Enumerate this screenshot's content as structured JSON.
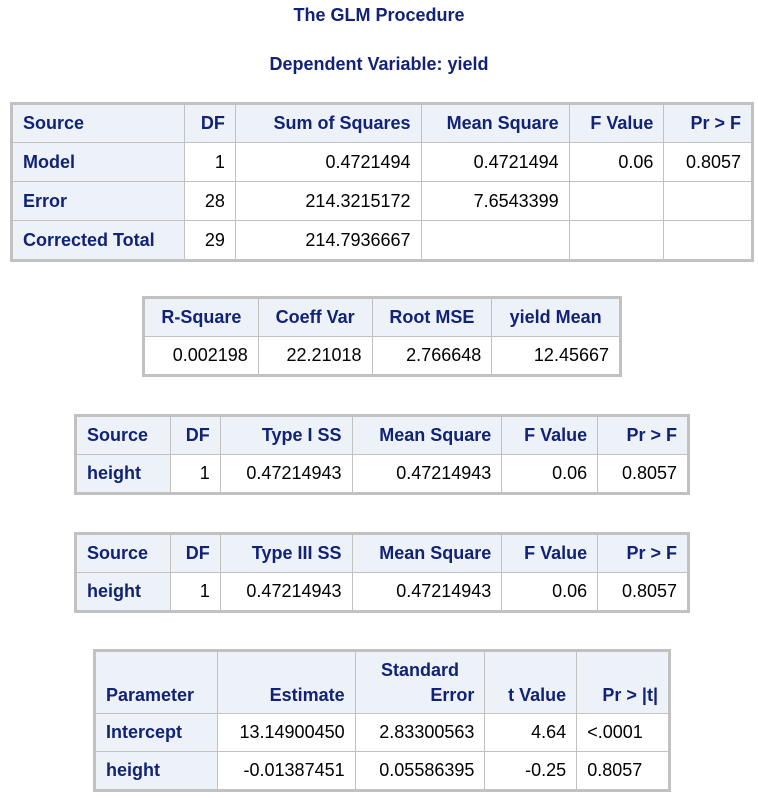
{
  "header": {
    "procedure_title": "The GLM Procedure",
    "dependent_variable": "Dependent Variable: yield"
  },
  "anova": {
    "columns": [
      "Source",
      "DF",
      "Sum of Squares",
      "Mean Square",
      "F Value",
      "Pr > F"
    ],
    "rows": [
      {
        "source": "Model",
        "df": "1",
        "ss": "0.4721494",
        "ms": "0.4721494",
        "f": "0.06",
        "p": "0.8057"
      },
      {
        "source": "Error",
        "df": "28",
        "ss": "214.3215172",
        "ms": "7.6543399",
        "f": "",
        "p": ""
      },
      {
        "source": "Corrected Total",
        "df": "29",
        "ss": "214.7936667",
        "ms": "",
        "f": "",
        "p": ""
      }
    ]
  },
  "fit": {
    "columns": [
      "R-Square",
      "Coeff Var",
      "Root MSE",
      "yield Mean"
    ],
    "values": [
      "0.002198",
      "22.21018",
      "2.766648",
      "12.45667"
    ]
  },
  "type1": {
    "columns": [
      "Source",
      "DF",
      "Type I SS",
      "Mean Square",
      "F Value",
      "Pr > F"
    ],
    "row": {
      "source": "height",
      "df": "1",
      "ss": "0.47214943",
      "ms": "0.47214943",
      "f": "0.06",
      "p": "0.8057"
    }
  },
  "type3": {
    "columns": [
      "Source",
      "DF",
      "Type III SS",
      "Mean Square",
      "F Value",
      "Pr > F"
    ],
    "row": {
      "source": "height",
      "df": "1",
      "ss": "0.47214943",
      "ms": "0.47214943",
      "f": "0.06",
      "p": "0.8057"
    }
  },
  "params": {
    "columns": [
      "Parameter",
      "Estimate",
      "Standard",
      "Error",
      "t Value",
      "Pr > |t|"
    ],
    "rows": [
      {
        "name": "Intercept",
        "estimate": "13.14900450",
        "se": "2.83300563",
        "t": "4.64",
        "p": "<.0001"
      },
      {
        "name": "height",
        "estimate": "-0.01387451",
        "se": "0.05586395",
        "t": "-0.25",
        "p": "0.8057"
      }
    ]
  },
  "colors": {
    "header_text": "#112277",
    "header_bg": "#edf2f9",
    "border": "#c1c1c1"
  }
}
